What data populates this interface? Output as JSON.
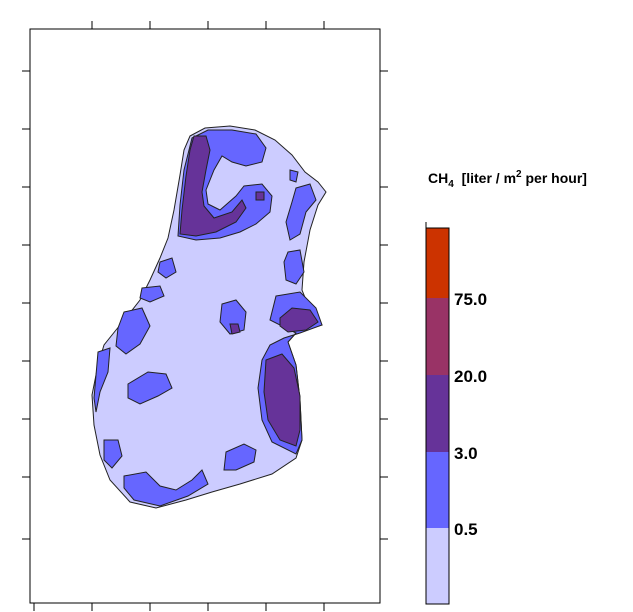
{
  "chart_data": {
    "type": "heatmap",
    "variable": "CH4",
    "unit": "[liter / m² per hour]",
    "colorbar": {
      "levels": [
        {
          "range": "< 0.5",
          "color": "#ccccff"
        },
        {
          "range": "0.5 – 3.0",
          "color": "#6666ff"
        },
        {
          "range": "3.0 – 20.0",
          "color": "#663399"
        },
        {
          "range": "20.0 – 75.0",
          "color": "#993366"
        },
        {
          "range": "> 75.0",
          "color": "#cc3300"
        }
      ],
      "tick_labels": [
        "0.5",
        "3.0",
        "20.0",
        "75.0"
      ]
    },
    "grid": false
  },
  "legend": {
    "title_main": "CH",
    "title_sub": "4",
    "title_rest_1": "  [liter / m",
    "title_sup": "2",
    "title_rest_2": " per hour]"
  },
  "colors": {
    "low": "#ccccff",
    "mid_low": "#6666ff",
    "mid": "#663399",
    "mid_high": "#993366",
    "high": "#cc3300"
  }
}
